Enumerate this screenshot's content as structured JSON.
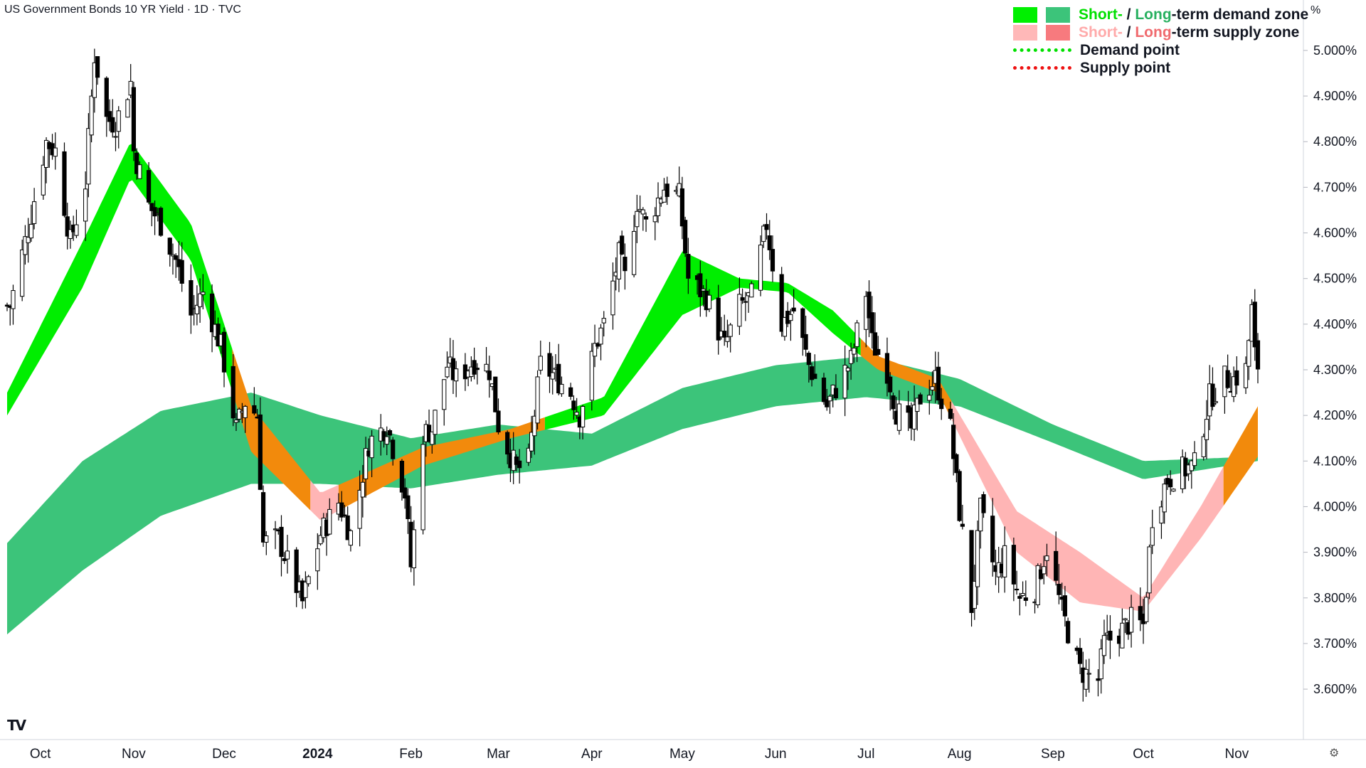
{
  "title": "US Government Bonds 10 YR Yield · 1D · TVC",
  "unit_label": "%",
  "logo_text": "TV",
  "settings_icon": "⚙",
  "legend": [
    {
      "type": "swatch",
      "colors": [
        "#00f000",
        "#3cc47a"
      ],
      "parts": [
        {
          "t": "Short-",
          "c": "#00e000"
        },
        {
          "t": " / ",
          "c": "#131722"
        },
        {
          "t": "Long",
          "c": "#28b060"
        },
        {
          "t": "-term demand zone",
          "c": "#131722"
        }
      ]
    },
    {
      "type": "swatch",
      "colors": [
        "#ffb8b8",
        "#f77a7e"
      ],
      "parts": [
        {
          "t": "Short-",
          "c": "#ffaaaa"
        },
        {
          "t": " / ",
          "c": "#131722"
        },
        {
          "t": "Long",
          "c": "#f06a6e"
        },
        {
          "t": "-term supply zone",
          "c": "#131722"
        }
      ]
    },
    {
      "type": "dots",
      "color": "#00e000",
      "parts": [
        {
          "t": "Demand point",
          "c": "#131722"
        }
      ]
    },
    {
      "type": "dots",
      "color": "#ee1111",
      "parts": [
        {
          "t": "Supply point",
          "c": "#131722"
        }
      ]
    }
  ],
  "colors": {
    "short_demand": "#00ee00",
    "long_demand": "#3cc47a",
    "short_supply": "#ffb5b5",
    "long_supply": "#f77a7e",
    "overlap": "#f28a0c",
    "candle": "#000000"
  },
  "chart_data": {
    "type": "candlestick",
    "y_range": [
      3.53,
      5.07
    ],
    "y_ticks": [
      "5.000%",
      "4.900%",
      "4.800%",
      "4.700%",
      "4.600%",
      "4.500%",
      "4.400%",
      "4.300%",
      "4.200%",
      "4.100%",
      "4.000%",
      "3.900%",
      "3.800%",
      "3.700%",
      "3.600%"
    ],
    "x_ticks": [
      {
        "label": "Oct",
        "date": "2023-10-01"
      },
      {
        "label": "Nov",
        "date": "2023-11-01"
      },
      {
        "label": "Dec",
        "date": "2023-12-01"
      },
      {
        "label": "2024",
        "date": "2024-01-01",
        "bold": true
      },
      {
        "label": "Feb",
        "date": "2024-02-01"
      },
      {
        "label": "Mar",
        "date": "2024-03-01"
      },
      {
        "label": "Apr",
        "date": "2024-04-01"
      },
      {
        "label": "May",
        "date": "2024-05-01"
      },
      {
        "label": "Jun",
        "date": "2024-06-01"
      },
      {
        "label": "Jul",
        "date": "2024-07-01"
      },
      {
        "label": "Aug",
        "date": "2024-08-01"
      },
      {
        "label": "Sep",
        "date": "2024-09-01"
      },
      {
        "label": "Oct",
        "date": "2024-10-01"
      },
      {
        "label": "Nov",
        "date": "2024-11-01"
      }
    ],
    "date_range": [
      "2023-09-20",
      "2024-11-08"
    ],
    "close_anchors": [
      [
        "2023-09-21",
        4.44
      ],
      [
        "2023-09-27",
        4.61
      ],
      [
        "2023-10-03",
        4.8
      ],
      [
        "2023-10-06",
        4.78
      ],
      [
        "2023-10-11",
        4.58
      ],
      [
        "2023-10-16",
        4.71
      ],
      [
        "2023-10-19",
        4.99
      ],
      [
        "2023-10-23",
        4.85
      ],
      [
        "2023-10-26",
        4.84
      ],
      [
        "2023-10-31",
        4.93
      ],
      [
        "2023-11-01",
        4.78
      ],
      [
        "2023-11-06",
        4.66
      ],
      [
        "2023-11-10",
        4.62
      ],
      [
        "2023-11-15",
        4.54
      ],
      [
        "2023-11-20",
        4.42
      ],
      [
        "2023-11-24",
        4.47
      ],
      [
        "2023-11-30",
        4.35
      ],
      [
        "2023-12-05",
        4.17
      ],
      [
        "2023-12-08",
        4.23
      ],
      [
        "2023-12-12",
        4.2
      ],
      [
        "2023-12-14",
        3.92
      ],
      [
        "2023-12-19",
        3.93
      ],
      [
        "2023-12-27",
        3.79
      ],
      [
        "2024-01-02",
        3.94
      ],
      [
        "2024-01-08",
        4.01
      ],
      [
        "2024-01-12",
        3.94
      ],
      [
        "2024-01-18",
        4.14
      ],
      [
        "2024-01-24",
        4.18
      ],
      [
        "2024-01-30",
        4.03
      ],
      [
        "2024-02-01",
        3.87
      ],
      [
        "2024-02-05",
        4.16
      ],
      [
        "2024-02-08",
        4.17
      ],
      [
        "2024-02-13",
        4.31
      ],
      [
        "2024-02-16",
        4.28
      ],
      [
        "2024-02-22",
        4.32
      ],
      [
        "2024-02-27",
        4.3
      ],
      [
        "2024-03-01",
        4.18
      ],
      [
        "2024-03-07",
        4.08
      ],
      [
        "2024-03-11",
        4.1
      ],
      [
        "2024-03-15",
        4.31
      ],
      [
        "2024-03-19",
        4.29
      ],
      [
        "2024-03-25",
        4.25
      ],
      [
        "2024-03-28",
        4.2
      ],
      [
        "2024-04-02",
        4.35
      ],
      [
        "2024-04-05",
        4.4
      ],
      [
        "2024-04-10",
        4.55
      ],
      [
        "2024-04-12",
        4.5
      ],
      [
        "2024-04-16",
        4.67
      ],
      [
        "2024-04-19",
        4.62
      ],
      [
        "2024-04-25",
        4.7
      ],
      [
        "2024-04-30",
        4.68
      ],
      [
        "2024-05-03",
        4.5
      ],
      [
        "2024-05-09",
        4.46
      ],
      [
        "2024-05-15",
        4.35
      ],
      [
        "2024-05-20",
        4.44
      ],
      [
        "2024-05-24",
        4.46
      ],
      [
        "2024-05-29",
        4.62
      ],
      [
        "2024-06-03",
        4.4
      ],
      [
        "2024-06-07",
        4.43
      ],
      [
        "2024-06-12",
        4.31
      ],
      [
        "2024-06-18",
        4.22
      ],
      [
        "2024-06-21",
        4.26
      ],
      [
        "2024-06-26",
        4.32
      ],
      [
        "2024-07-01",
        4.47
      ],
      [
        "2024-07-03",
        4.36
      ],
      [
        "2024-07-08",
        4.3
      ],
      [
        "2024-07-11",
        4.21
      ],
      [
        "2024-07-16",
        4.17
      ],
      [
        "2024-07-19",
        4.24
      ],
      [
        "2024-07-24",
        4.28
      ],
      [
        "2024-07-29",
        4.17
      ],
      [
        "2024-08-01",
        3.99
      ],
      [
        "2024-08-05",
        3.78
      ],
      [
        "2024-08-08",
        3.99
      ],
      [
        "2024-08-13",
        3.85
      ],
      [
        "2024-08-16",
        3.89
      ],
      [
        "2024-08-21",
        3.8
      ],
      [
        "2024-08-26",
        3.82
      ],
      [
        "2024-08-30",
        3.91
      ],
      [
        "2024-09-04",
        3.77
      ],
      [
        "2024-09-10",
        3.64
      ],
      [
        "2024-09-16",
        3.62
      ],
      [
        "2024-09-18",
        3.7
      ],
      [
        "2024-09-24",
        3.73
      ],
      [
        "2024-09-27",
        3.75
      ],
      [
        "2024-10-01",
        3.74
      ],
      [
        "2024-10-04",
        3.98
      ],
      [
        "2024-10-09",
        4.06
      ],
      [
        "2024-10-14",
        4.08
      ],
      [
        "2024-10-18",
        4.09
      ],
      [
        "2024-10-23",
        4.24
      ],
      [
        "2024-10-28",
        4.28
      ],
      [
        "2024-10-31",
        4.28
      ],
      [
        "2024-11-04",
        4.3
      ],
      [
        "2024-11-06",
        4.43
      ],
      [
        "2024-11-07",
        4.33
      ],
      [
        "2024-11-08",
        4.31
      ]
    ],
    "bands": {
      "short_upper": [
        [
          "2023-09-20",
          4.25
        ],
        [
          "2023-10-15",
          4.58
        ],
        [
          "2023-10-31",
          4.8
        ],
        [
          "2023-11-20",
          4.62
        ],
        [
          "2023-12-10",
          4.22
        ],
        [
          "2024-01-02",
          4.03
        ],
        [
          "2024-02-05",
          4.13
        ],
        [
          "2024-03-05",
          4.17
        ],
        [
          "2024-04-05",
          4.24
        ],
        [
          "2024-05-01",
          4.56
        ],
        [
          "2024-05-20",
          4.5
        ],
        [
          "2024-06-05",
          4.49
        ],
        [
          "2024-06-20",
          4.43
        ],
        [
          "2024-07-05",
          4.33
        ],
        [
          "2024-07-25",
          4.28
        ],
        [
          "2024-08-20",
          3.99
        ],
        [
          "2024-09-10",
          3.9
        ],
        [
          "2024-10-01",
          3.8
        ],
        [
          "2024-10-20",
          4.0
        ],
        [
          "2024-11-08",
          4.22
        ]
      ],
      "short_lower": [
        [
          "2023-09-20",
          4.2
        ],
        [
          "2023-10-15",
          4.48
        ],
        [
          "2023-10-31",
          4.72
        ],
        [
          "2023-11-20",
          4.54
        ],
        [
          "2023-12-10",
          4.12
        ],
        [
          "2024-01-02",
          3.97
        ],
        [
          "2024-02-05",
          4.09
        ],
        [
          "2024-03-05",
          4.15
        ],
        [
          "2024-04-05",
          4.2
        ],
        [
          "2024-05-01",
          4.42
        ],
        [
          "2024-05-20",
          4.48
        ],
        [
          "2024-06-05",
          4.47
        ],
        [
          "2024-06-20",
          4.38
        ],
        [
          "2024-07-05",
          4.3
        ],
        [
          "2024-07-25",
          4.25
        ],
        [
          "2024-08-20",
          3.9
        ],
        [
          "2024-09-10",
          3.79
        ],
        [
          "2024-10-01",
          3.77
        ],
        [
          "2024-10-20",
          3.93
        ],
        [
          "2024-11-08",
          4.11
        ]
      ],
      "long_upper": [
        [
          "2023-09-20",
          3.92
        ],
        [
          "2023-10-15",
          4.1
        ],
        [
          "2023-11-10",
          4.21
        ],
        [
          "2023-12-10",
          4.25
        ],
        [
          "2024-01-02",
          4.2
        ],
        [
          "2024-02-01",
          4.15
        ],
        [
          "2024-03-01",
          4.18
        ],
        [
          "2024-04-01",
          4.16
        ],
        [
          "2024-05-01",
          4.26
        ],
        [
          "2024-06-01",
          4.31
        ],
        [
          "2024-07-01",
          4.33
        ],
        [
          "2024-08-01",
          4.28
        ],
        [
          "2024-09-01",
          4.18
        ],
        [
          "2024-10-01",
          4.1
        ],
        [
          "2024-11-08",
          4.11
        ]
      ],
      "long_lower": [
        [
          "2023-09-20",
          3.72
        ],
        [
          "2023-10-15",
          3.86
        ],
        [
          "2023-11-10",
          3.98
        ],
        [
          "2023-12-10",
          4.05
        ],
        [
          "2024-01-02",
          4.05
        ],
        [
          "2024-02-01",
          4.04
        ],
        [
          "2024-03-01",
          4.07
        ],
        [
          "2024-04-01",
          4.09
        ],
        [
          "2024-05-01",
          4.17
        ],
        [
          "2024-06-01",
          4.22
        ],
        [
          "2024-07-01",
          4.24
        ],
        [
          "2024-08-01",
          4.22
        ],
        [
          "2024-09-01",
          4.14
        ],
        [
          "2024-10-01",
          4.06
        ],
        [
          "2024-11-08",
          4.1
        ]
      ]
    }
  }
}
